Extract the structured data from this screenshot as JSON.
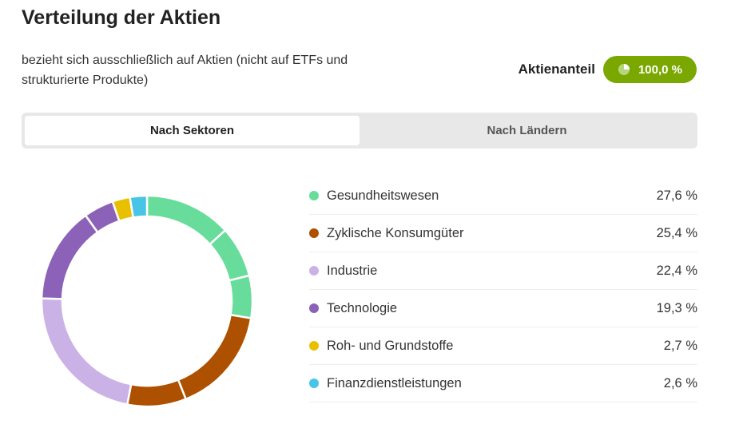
{
  "header": {
    "title": "Verteilung der Aktien",
    "subtitle": "bezieht sich ausschließlich auf Aktien (nicht auf ETFs und strukturierte Produkte)"
  },
  "share": {
    "label": "Aktienanteil",
    "value": "100,0 %",
    "icon": "pie-icon",
    "color": "#7aa800"
  },
  "tabs": [
    {
      "label": "Nach Sektoren",
      "active": true
    },
    {
      "label": "Nach Ländern",
      "active": false
    }
  ],
  "chart_data": {
    "type": "pie",
    "style": "donut",
    "categories": [
      "Gesundheitswesen",
      "Zyklische Konsumgüter",
      "Industrie",
      "Technologie",
      "Roh- und Grundstoffe",
      "Finanzdienstleistungen"
    ],
    "values": [
      27.6,
      25.4,
      22.4,
      19.3,
      2.7,
      2.6
    ],
    "labels": [
      "27,6 %",
      "25,4 %",
      "22,4 %",
      "19,3 %",
      "2,7 %",
      "2,6 %"
    ],
    "colors": [
      "#68dc9a",
      "#ad5000",
      "#cbb2e6",
      "#8c62b8",
      "#e8c000",
      "#48c4e6"
    ],
    "segments": [
      [
        13.3,
        7.8,
        6.5
      ],
      [
        16.4,
        9.0
      ],
      [
        22.4
      ],
      [
        14.7,
        4.6
      ],
      [
        2.7
      ],
      [
        2.6
      ]
    ],
    "legend": "right"
  }
}
